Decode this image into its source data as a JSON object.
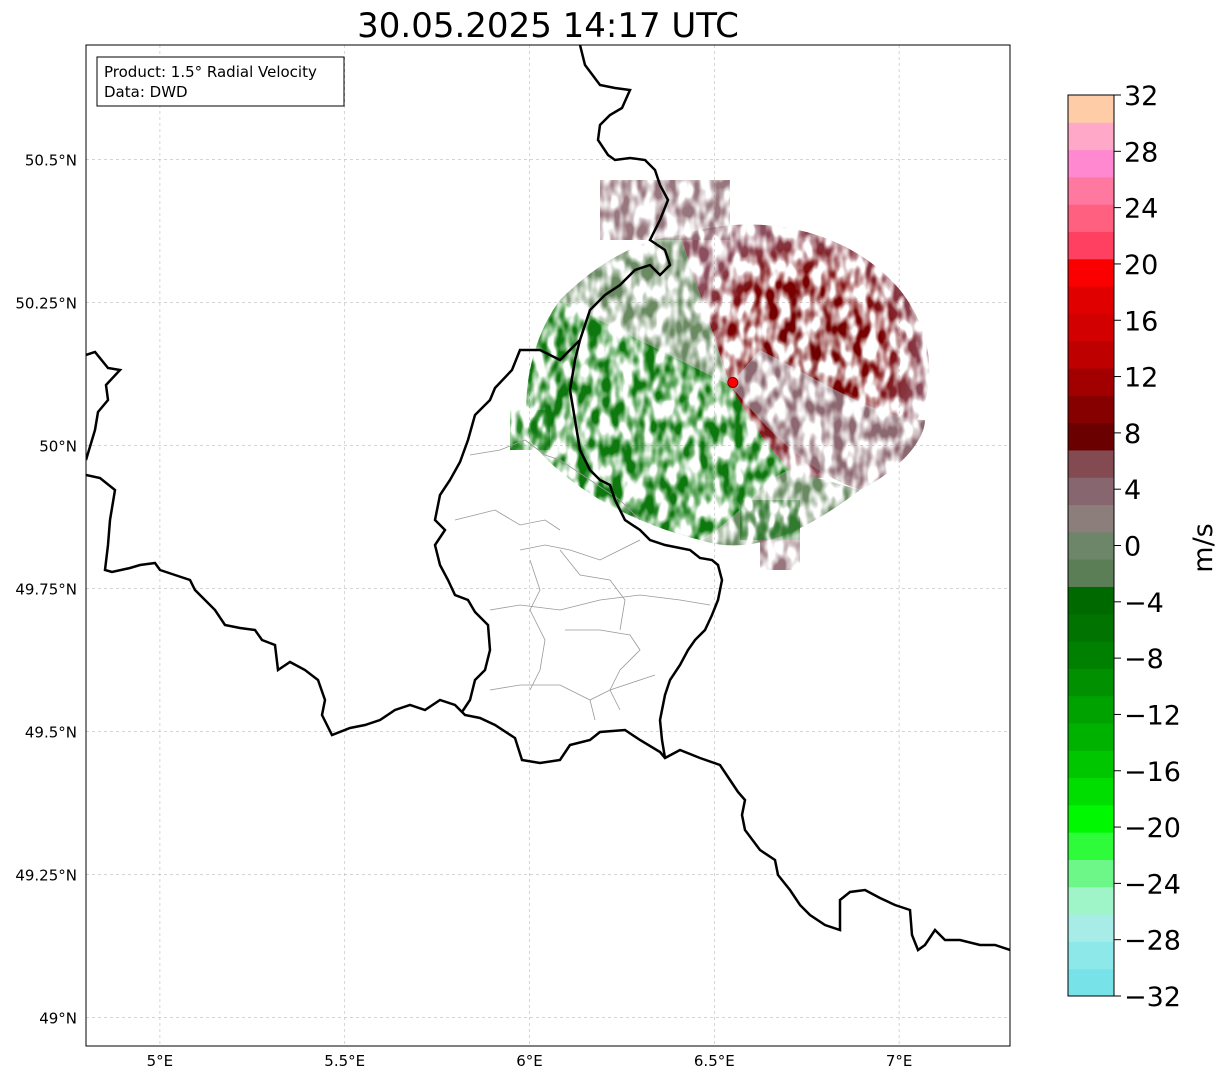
{
  "title": "30.05.2025 14:17 UTC",
  "info_box": {
    "product_line": "Product: 1.5° Radial Velocity",
    "data_line": "Data: DWD"
  },
  "map": {
    "lon_range": [
      4.8,
      7.3
    ],
    "lat_range": [
      48.95,
      50.7
    ],
    "lon_ticks": [
      {
        "value": 5.0,
        "label": "5°E"
      },
      {
        "value": 5.5,
        "label": "5.5°E"
      },
      {
        "value": 6.0,
        "label": "6°E"
      },
      {
        "value": 6.5,
        "label": "6.5°E"
      },
      {
        "value": 7.0,
        "label": "7°E"
      }
    ],
    "lat_ticks": [
      {
        "value": 49.0,
        "label": "49°N"
      },
      {
        "value": 49.25,
        "label": "49.25°N"
      },
      {
        "value": 49.5,
        "label": "49.5°N"
      },
      {
        "value": 49.75,
        "label": "49.75°N"
      },
      {
        "value": 50.0,
        "label": "50°N"
      },
      {
        "value": 50.25,
        "label": "50.25°N"
      },
      {
        "value": 50.5,
        "label": "50.5°N"
      }
    ],
    "grid": true,
    "radar_site": {
      "lon": 6.55,
      "lat": 50.11,
      "color": "#ff0000"
    }
  },
  "colorbar": {
    "label": "m/s",
    "min": -32,
    "max": 32,
    "tick_values": [
      -32,
      -28,
      -24,
      -20,
      -16,
      -12,
      -8,
      -4,
      0,
      4,
      8,
      12,
      16,
      20,
      24,
      28,
      32
    ],
    "tick_labels": [
      "−32",
      "−28",
      "−24",
      "−20",
      "−16",
      "−12",
      "−8",
      "−4",
      "0",
      "4",
      "8",
      "12",
      "16",
      "20",
      "24",
      "28",
      "32"
    ],
    "colors": [
      "#77e3e8",
      "#8de8ea",
      "#a8ece8",
      "#9ff5c8",
      "#6cf788",
      "#2efc3a",
      "#00f800",
      "#00de00",
      "#00c600",
      "#00b200",
      "#00a200",
      "#009000",
      "#008000",
      "#007300",
      "#006a00",
      "#5c7e56",
      "#6d8569",
      "#8b7e7b",
      "#876670",
      "#844a52",
      "#6b0000",
      "#860000",
      "#a20000",
      "#be0000",
      "#d20000",
      "#e00000",
      "#fa0000",
      "#ff4060",
      "#ff6080",
      "#ff78a0",
      "#ff88d0",
      "#ffa8c8",
      "#ffcca8"
    ]
  },
  "legend_colors": {
    "outbound": "#7a0000",
    "inbound": "#0a7a0a",
    "near_zero_out": "#8c6870",
    "near_zero_in": "#6a8a62"
  }
}
